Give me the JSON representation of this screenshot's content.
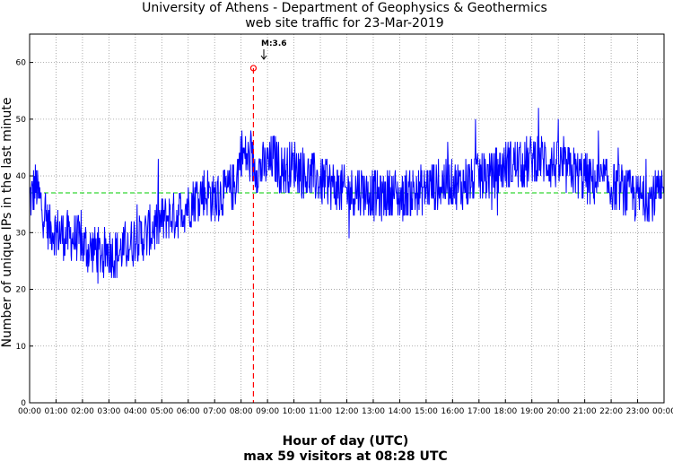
{
  "chart_data": {
    "type": "line",
    "title": "University of Athens - Department of Geophysics & Geothermics",
    "subtitle": "web site traffic for 23-Mar-2019",
    "xlabel": "Hour of day (UTC)",
    "footer": "max 59 visitors at 08:28 UTC",
    "ylabel": "Number of unique IPs in the last minute",
    "ylim": [
      0,
      65
    ],
    "xlim_hours": [
      0,
      24
    ],
    "x_ticks": [
      "00:00",
      "01:00",
      "02:00",
      "03:00",
      "04:00",
      "05:00",
      "06:00",
      "07:00",
      "08:00",
      "09:00",
      "10:00",
      "11:00",
      "12:00",
      "13:00",
      "14:00",
      "15:00",
      "16:00",
      "17:00",
      "18:00",
      "19:00",
      "20:00",
      "21:00",
      "22:00",
      "23:00",
      "00:00"
    ],
    "y_ticks": [
      0,
      10,
      20,
      30,
      40,
      50,
      60
    ],
    "grid": true,
    "mean_value": 37,
    "max": {
      "time": "08:28",
      "hour": 8.467,
      "value": 59
    },
    "annotation": "M:3.6",
    "series": [
      {
        "color": "#0000ff",
        "x_hours": [
          0,
          0.25,
          0.5,
          0.75,
          1,
          1.25,
          1.5,
          1.75,
          2,
          2.25,
          2.5,
          2.75,
          3,
          3.25,
          3.5,
          3.75,
          4,
          4.25,
          4.5,
          4.75,
          5,
          5.25,
          5.5,
          5.75,
          6,
          6.25,
          6.5,
          6.75,
          7,
          7.25,
          7.5,
          7.75,
          8,
          8.25,
          8.5,
          8.75,
          9,
          9.25,
          9.5,
          9.75,
          10,
          10.25,
          10.5,
          10.75,
          11,
          11.25,
          11.5,
          11.75,
          12,
          12.25,
          12.5,
          12.75,
          13,
          13.25,
          13.5,
          13.75,
          14,
          14.25,
          14.5,
          14.75,
          15,
          15.25,
          15.5,
          15.75,
          16,
          16.25,
          16.5,
          16.75,
          17,
          17.25,
          17.5,
          17.75,
          18,
          18.25,
          18.5,
          18.75,
          19,
          19.25,
          19.5,
          19.75,
          20,
          20.25,
          20.5,
          20.75,
          21,
          21.25,
          21.5,
          21.75,
          22,
          22.25,
          22.5,
          22.75,
          23,
          23.25,
          23.5,
          23.75,
          24
        ],
        "values": [
          36,
          38,
          34,
          31,
          30,
          30,
          29,
          29,
          28,
          27,
          27,
          26,
          27,
          26,
          27,
          28,
          29,
          29,
          30,
          31,
          32,
          33,
          33,
          34,
          35,
          36,
          37,
          37,
          36,
          37,
          37,
          38,
          44,
          43,
          42,
          41,
          42,
          43,
          41,
          41,
          42,
          41,
          40,
          40,
          39,
          39,
          38,
          38,
          37,
          37,
          38,
          37,
          37,
          36,
          37,
          37,
          36,
          37,
          37,
          37,
          38,
          38,
          38,
          39,
          39,
          38,
          39,
          39,
          40,
          40,
          40,
          41,
          42,
          42,
          42,
          42,
          43,
          43,
          43,
          42,
          42,
          41,
          41,
          40,
          40,
          39,
          39,
          39,
          38,
          38,
          37,
          37,
          36,
          36,
          36,
          37,
          36
        ]
      }
    ]
  }
}
